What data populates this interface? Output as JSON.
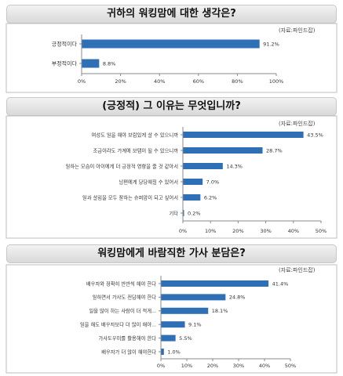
{
  "chart_data": [
    {
      "type": "bar",
      "orientation": "horizontal",
      "title": "귀하의 워킹맘에 대한 생각은?",
      "source": "(자료:파인드잡)",
      "categories": [
        "긍정적이다",
        "부정적이다"
      ],
      "values": [
        91.2,
        8.8
      ],
      "value_labels": [
        "91.2%",
        "8.8%"
      ],
      "xlim": [
        0,
        100
      ],
      "ticks": [
        0,
        20,
        40,
        60,
        80,
        100
      ],
      "tick_labels": [
        "0%",
        "20%",
        "40%",
        "60%",
        "80%",
        "100%"
      ],
      "bar_color": "#2e6fb5",
      "grid": false
    },
    {
      "type": "bar",
      "orientation": "horizontal",
      "title": "(긍정적) 그 이유는 무엇입니까?",
      "source": "(자료:파인드잡)",
      "categories": [
        "여성도 일을 해야 보람있게 살 수 있으니까",
        "조금이라도 가계에 보탬이 될 수 있으니까",
        "일하는 모습이 아이에게 더 긍정적 영향을 줄 것 같아서",
        "남편에게 당당해질 수 있어서",
        "일과 살림을 모두 잘하는 슈퍼맘이 되고 싶어서",
        "기타"
      ],
      "values": [
        43.5,
        28.7,
        14.3,
        7.0,
        6.2,
        0.2
      ],
      "value_labels": [
        "43.5%",
        "28.7%",
        "14.3%",
        "7.0%",
        "6.2%",
        "0.2%"
      ],
      "xlim": [
        0,
        50
      ],
      "ticks": [
        0,
        10,
        20,
        30,
        40,
        50
      ],
      "tick_labels": [
        "0%",
        "10%",
        "20%",
        "30%",
        "40%",
        "50%"
      ],
      "bar_color": "#2e6fb5",
      "grid": false
    },
    {
      "type": "bar",
      "orientation": "horizontal",
      "title": "워킹맘에게 바람직한 가사 분담은?",
      "source": "(자료:파인드잡)",
      "categories": [
        "배우자와 정확히 반반씩 해야 한다",
        "일하면서 가사도 전담해야 한다",
        "일을 많이 하는 사람이 더 적게...",
        "일을 해도 배우자보다 더 많이 해야...",
        "가사도우미를 활용해야 한다",
        "배우자가 더 많이 해야한다"
      ],
      "values": [
        41.4,
        24.8,
        18.1,
        9.1,
        5.5,
        1.0
      ],
      "value_labels": [
        "41.4%",
        "24.8%",
        "18.1%",
        "9.1%",
        "5.5%",
        "1.0%"
      ],
      "xlim": [
        0,
        50
      ],
      "ticks": [
        0,
        10,
        20,
        30,
        40,
        50
      ],
      "tick_labels": [
        "0%",
        "10%",
        "20%",
        "30%",
        "40%",
        "50%"
      ],
      "bar_color": "#2e6fb5",
      "grid": false
    }
  ]
}
